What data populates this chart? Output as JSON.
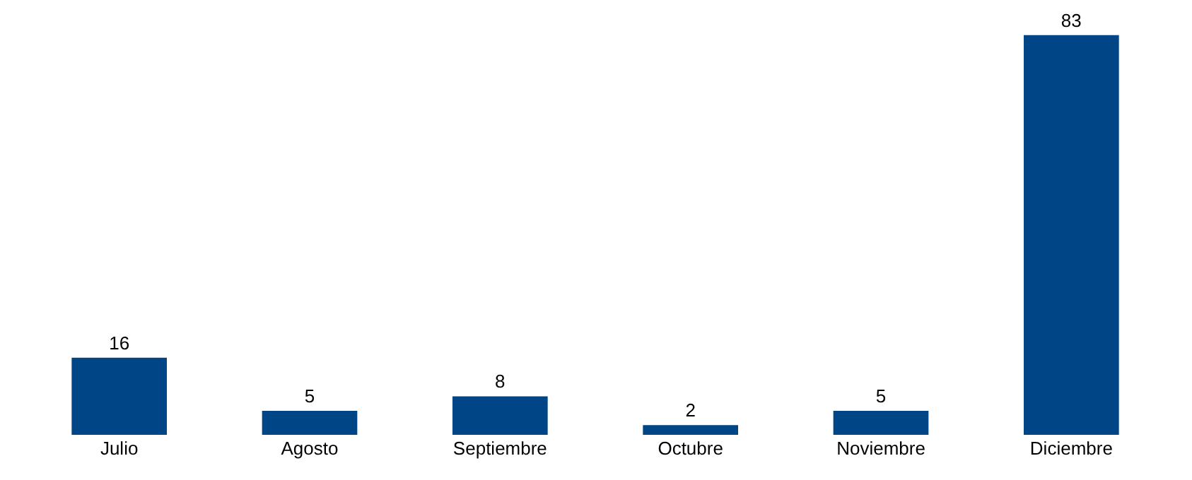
{
  "chart_data": {
    "type": "bar",
    "categories": [
      "Julio",
      "Agosto",
      "Septiembre",
      "Octubre",
      "Noviembre",
      "Diciembre"
    ],
    "values": [
      16,
      5,
      8,
      2,
      5,
      83
    ],
    "color": "#004586",
    "data_labels": true,
    "grid": false,
    "legend": false
  }
}
